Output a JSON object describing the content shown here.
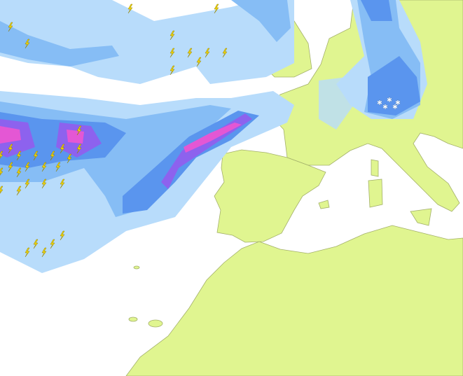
{
  "map": {
    "colors": {
      "sea": "#ffffff",
      "land": "#e0f590",
      "border": "#a3b06a",
      "precip_light": "#b8dcfb",
      "precip_moderate": "#86bdf5",
      "precip_heavy": "#5a95ee",
      "precip_very_heavy": "#8d62ee",
      "precip_extreme": "#e457d4",
      "lightning": "#f5d800",
      "snow": "#ffffff"
    },
    "icons": {
      "lightning": "lightning-icon",
      "snow": "snowflake-icon"
    }
  }
}
